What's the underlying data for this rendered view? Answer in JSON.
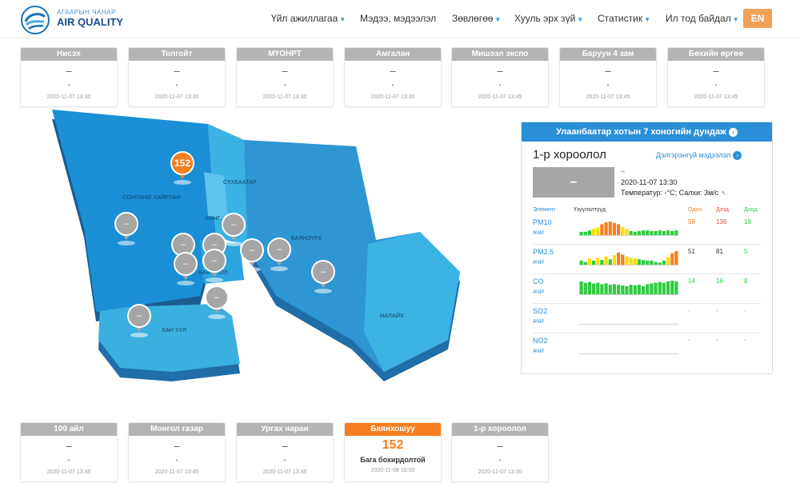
{
  "header": {
    "logo_subtitle": "АГААРЫН ЧАНАР",
    "logo_title": "AIR QUALITY",
    "nav": [
      {
        "label": "Үйл ажиллагаа",
        "dropdown": true
      },
      {
        "label": "Мэдээ, мэдээлэл",
        "dropdown": false
      },
      {
        "label": "Зөвлөгөө",
        "dropdown": true
      },
      {
        "label": "Хууль эрх зүй",
        "dropdown": true
      },
      {
        "label": "Статистик",
        "dropdown": true
      },
      {
        "label": "Ил тод байдал",
        "dropdown": true
      }
    ],
    "lang_button": "EN"
  },
  "stations_top": [
    {
      "name": "Нисэх",
      "value": "–",
      "index": "-",
      "time": "2020-11-07 13:30"
    },
    {
      "name": "Толгойт",
      "value": "–",
      "index": "-",
      "time": "2020-11-07 13:30"
    },
    {
      "name": "МҮОНРТ",
      "value": "–",
      "index": "-",
      "time": "2020-11-07 13:30"
    },
    {
      "name": "Амгалан",
      "value": "–",
      "index": "-",
      "time": "2020-11-07 13:30"
    },
    {
      "name": "Мишээл экспо",
      "value": "–",
      "index": "-",
      "time": "2020-11-07 13:45"
    },
    {
      "name": "Баруун 4 зам",
      "value": "–",
      "index": "-",
      "time": "2020-11-07 13:45"
    },
    {
      "name": "Бөхийн өргөө",
      "value": "–",
      "index": "-",
      "time": "2020-11-07 13:45"
    }
  ],
  "stations_bottom": [
    {
      "name": "100 айл",
      "value": "–",
      "index": "-",
      "time": "2020-11-07 13:45"
    },
    {
      "name": "Монгол газар",
      "value": "–",
      "index": "-",
      "time": "2020-11-07 13:45"
    },
    {
      "name": "Ургах наран",
      "value": "–",
      "index": "-",
      "time": "2020-11-07 13:45"
    },
    {
      "name": "Баянхошуу",
      "value": "152",
      "index": "Бага бохирдолтой",
      "time": "2020-11-08 10:00"
    },
    {
      "name": "1-р хороолол",
      "value": "–",
      "index": "-",
      "time": "2020-11-07 13:30"
    }
  ],
  "map": {
    "districts": [
      {
        "name": "СОНГИНО ХАЙРХАН"
      },
      {
        "name": "СҮХБААТАР"
      },
      {
        "name": "ЧИНГ"
      },
      {
        "name": "БАЯНЗҮРХ"
      },
      {
        "name": "БАЯ"
      },
      {
        "name": "ОЛ"
      },
      {
        "name": "ХАН УУЛ"
      },
      {
        "name": "НАЛАЙХ"
      }
    ],
    "pins": [
      "152",
      "–",
      "–",
      "–",
      "–",
      "–",
      "–",
      "–",
      "–",
      "–",
      "–",
      "–"
    ]
  },
  "panel": {
    "title": "Улаанбаатар хотын 7 хоногийн дундаж",
    "district": "1-р хороолол",
    "detail_link": "Дэлгэрэнгүй мэдээлэл",
    "aqi_value": "–",
    "dash": "–",
    "time": "2020-11-07 13:30",
    "weather": "Температур:  -°C; Салхи: 3м/с",
    "headers": {
      "element": "Элемент",
      "indicators": "Үзүүлэлтүүд",
      "now": "Одоо",
      "max": "Дээд",
      "min": "Доод"
    },
    "sub_label": "АЧИ",
    "pollutants": [
      {
        "name": "PM10",
        "now": "58",
        "max": "136",
        "min": "19",
        "bars": [
          0.25,
          0.25,
          0.35,
          0.45,
          0.55,
          0.8,
          0.95,
          1.0,
          0.9,
          0.8,
          0.6,
          0.45,
          0.3,
          0.25,
          0.3,
          0.35,
          0.35,
          0.3,
          0.3,
          0.35,
          0.3,
          0.35,
          0.3,
          0.35
        ]
      },
      {
        "name": "PM2.5",
        "now": "51",
        "max": "81",
        "min": "5",
        "bars": [
          0.3,
          0.2,
          0.45,
          0.3,
          0.5,
          0.35,
          0.6,
          0.4,
          0.7,
          0.9,
          0.75,
          0.6,
          0.5,
          0.45,
          0.4,
          0.35,
          0.3,
          0.3,
          0.2,
          0.15,
          0.3,
          0.55,
          0.85,
          1.0
        ]
      },
      {
        "name": "CO",
        "now": "14",
        "max": "16",
        "min": "8",
        "bars": [
          0.95,
          0.85,
          0.9,
          0.8,
          0.85,
          0.75,
          0.8,
          0.7,
          0.75,
          0.7,
          0.65,
          0.6,
          0.7,
          0.65,
          0.7,
          0.6,
          0.75,
          0.8,
          0.85,
          0.9,
          0.85,
          0.95,
          1.0,
          0.95
        ]
      },
      {
        "name": "SO2",
        "now": "-",
        "max": "-",
        "min": "-",
        "bars": []
      },
      {
        "name": "NO2",
        "now": "-",
        "max": "-",
        "min": "-",
        "bars": []
      }
    ]
  },
  "colors": {
    "accent_blue": "#2a8fd6",
    "orange": "#f47e20",
    "gray_badge": "#a6a6a6",
    "good_green": "#2ecc40",
    "moderate_yellow": "#ffdc00",
    "bad_orange": "#f47e20"
  }
}
